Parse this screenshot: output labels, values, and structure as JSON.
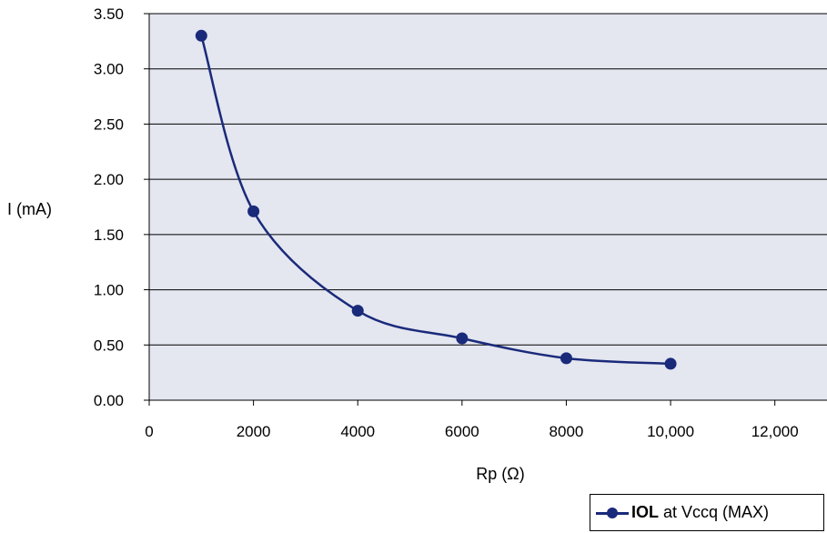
{
  "chart_data": {
    "type": "line",
    "title": "",
    "xlabel": "Rp (Ω)",
    "ylabel": "I (mA)",
    "xlim": [
      0,
      13000
    ],
    "ylim": [
      0,
      3.5
    ],
    "x_ticks": [
      0,
      2000,
      4000,
      6000,
      8000,
      10000,
      12000
    ],
    "x_tick_labels": [
      "0",
      "2000",
      "4000",
      "6000",
      "8000",
      "10,000",
      "12,000"
    ],
    "y_ticks": [
      0,
      0.5,
      1.0,
      1.5,
      2.0,
      2.5,
      3.0,
      3.5
    ],
    "y_tick_labels": [
      "0.00",
      "0.50",
      "1.00",
      "1.50",
      "2.00",
      "2.50",
      "3.00",
      "3.50"
    ],
    "grid": "horizontal",
    "legend_position": "bottom-right",
    "colors": {
      "series": "#1a2a7a",
      "plot_bg": "#e4e6f0",
      "grid": "#000000"
    },
    "series": [
      {
        "name_bold": "IOL",
        "name_rest": " at Vccq (MAX)",
        "x": [
          1000,
          2000,
          4000,
          6000,
          8000,
          10000
        ],
        "y": [
          3.3,
          1.71,
          0.81,
          0.56,
          0.38,
          0.33
        ]
      }
    ]
  }
}
